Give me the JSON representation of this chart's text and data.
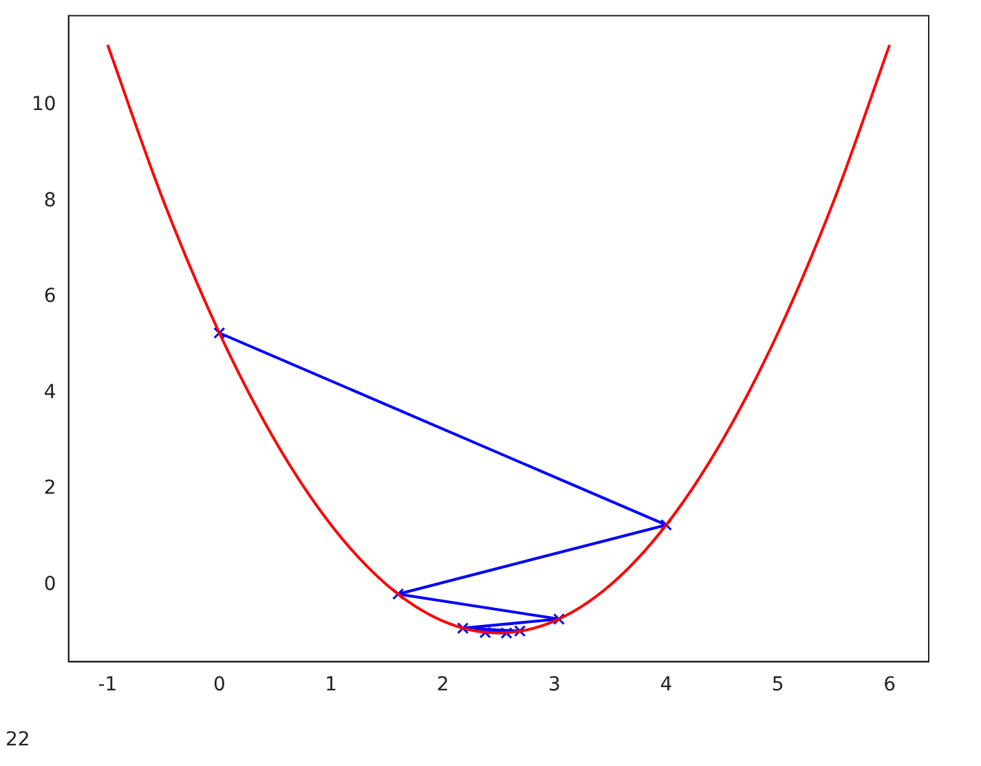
{
  "chart_data": {
    "type": "line",
    "xlim": [
      -1.35,
      6.35
    ],
    "ylim": [
      -1.6,
      11.86
    ],
    "xticks": [
      -1,
      0,
      1,
      2,
      3,
      4,
      5,
      6
    ],
    "yticks": [
      0,
      2,
      4,
      6,
      8,
      10
    ],
    "grid": false,
    "legend": false,
    "annotations": [
      "22"
    ],
    "series": [
      {
        "color": "#ff0000",
        "marker": "none",
        "x": [
          -1,
          -0.5,
          0,
          0.5,
          1,
          1.5,
          2,
          2.5,
          3,
          3.5,
          4,
          4.5,
          5,
          5.5,
          6
        ],
        "values": [
          11.25,
          8,
          5.25,
          3,
          1.25,
          0,
          -0.75,
          -1,
          -0.75,
          0,
          1.25,
          3,
          5.25,
          8,
          11.25
        ]
      },
      {
        "color": "#0000ff",
        "marker": "cross",
        "x": [
          0,
          4,
          1.6,
          3.04,
          2.18,
          2.69,
          2.38,
          2.57
        ],
        "values": [
          5.25,
          1.25,
          -0.19,
          -0.71,
          -0.9,
          -0.96,
          -0.99,
          -1
        ]
      }
    ]
  }
}
